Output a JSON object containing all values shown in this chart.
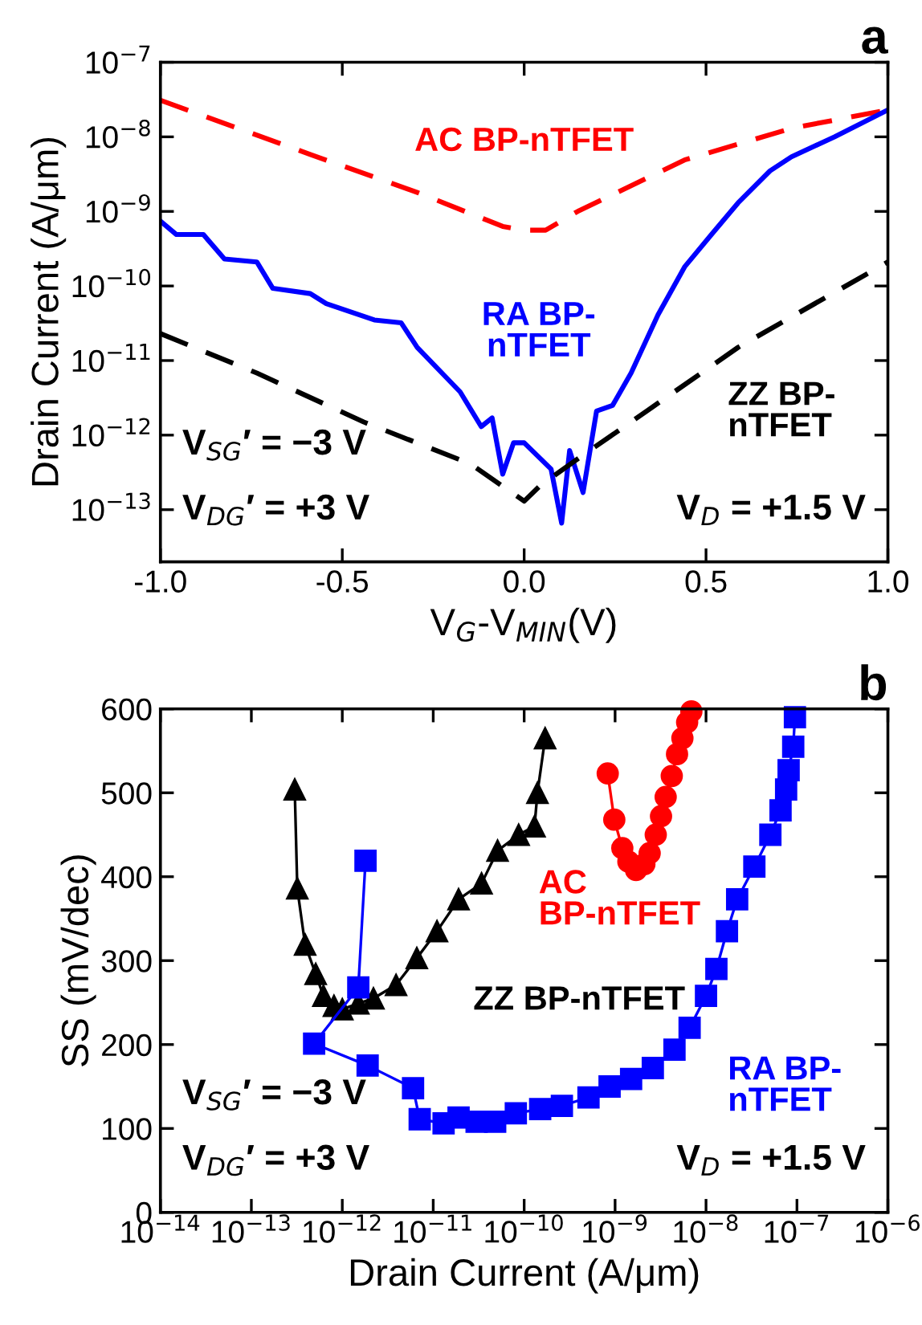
{
  "chart_data": [
    {
      "type": "line",
      "title": "a",
      "xlabel": "V$_{G}$-V$_{MIN}$(V)",
      "ylabel": "Drain Current (A/μm)",
      "log": "y",
      "line_style": "dashed",
      "marker": "none",
      "xlim": [
        -1.0,
        1.0
      ],
      "ylim": [
        2e-14,
        1e-07
      ],
      "xticks": [
        {
          "value": -1.0,
          "label": "-1.0"
        },
        {
          "value": -0.5,
          "label": "-0.5"
        },
        {
          "value": 0.0,
          "label": "0.0"
        },
        {
          "value": 0.5,
          "label": "0.5"
        },
        {
          "value": 1.0,
          "label": "1.0"
        }
      ],
      "yticks": [
        {
          "value": 1e-13,
          "label": "10$^{−13}$"
        },
        {
          "value": 1e-12,
          "label": "10$^{−12}$"
        },
        {
          "value": 1e-11,
          "label": "10$^{−11}$"
        },
        {
          "value": 1e-10,
          "label": "10$^{−10}$"
        },
        {
          "value": 1e-09,
          "label": "10$^{−9}$"
        },
        {
          "value": 1e-08,
          "label": "10$^{−8}$"
        },
        {
          "value": 1e-07,
          "label": "10$^{−7}$"
        }
      ],
      "series": [
        {
          "name": "AC BP-nTFET",
          "color": "#ff0000",
          "x": [
            -1,
            -0.588,
            -0.294,
            -0.059,
            0,
            0.059,
            0.147,
            0.441,
            0.735,
            1
          ],
          "values": [
            3.1e-08,
            5.8e-09,
            1.8e-09,
            6.3e-10,
            5.6e-10,
            5.6e-10,
            1e-09,
            4.9e-09,
            1.3e-08,
            2.3e-08
          ]
        },
        {
          "name": "RA BP-\nnTFET",
          "color": "#0000ff",
          "line_style": "solid",
          "x": [
            -1,
            -0.956,
            -0.882,
            -0.824,
            -0.735,
            -0.691,
            -0.588,
            -0.544,
            -0.412,
            -0.338,
            -0.294,
            -0.176,
            -0.118,
            -0.088,
            -0.059,
            -0.029,
            0,
            0.074,
            0.103,
            0.125,
            0.162,
            0.199,
            0.243,
            0.294,
            0.368,
            0.441,
            0.515,
            0.588,
            0.676,
            0.735,
            0.853,
            1
          ],
          "values": [
            7.4e-10,
            4.9e-10,
            4.9e-10,
            2.3e-10,
            2.1e-10,
            9.3e-11,
            7.9e-11,
            5.8e-11,
            3.5e-11,
            3.2e-11,
            1.5e-11,
            3.8e-12,
            1.3e-12,
            1.7e-12,
            3e-13,
            7.9e-13,
            7.9e-13,
            3.5e-13,
            6.6e-14,
            6.2e-13,
            1.7e-13,
            2.1e-12,
            2.5e-12,
            6.8e-12,
            4.1e-11,
            1.8e-10,
            4.9e-10,
            1.3e-09,
            3.5e-09,
            5.4e-09,
            1e-08,
            2.3e-08
          ]
        },
        {
          "name": "ZZ BP-\nnTFET",
          "color": "#000000",
          "x": [
            -1,
            -0.735,
            -0.441,
            -0.147,
            0,
            0.044,
            0.147,
            0.294,
            0.588,
            1
          ],
          "values": [
            2.3e-11,
            6.8e-12,
            1.5e-12,
            4.1e-13,
            1.3e-13,
            2.1e-13,
            4.8e-13,
            1.5e-12,
            1.5e-11,
            2.1e-10
          ]
        }
      ],
      "annotations": [
        "V$_{SG}$′ = −3 V",
        "V$_{DG}$′ = +3 V",
        "V$_{D}$ = +1.5 V"
      ]
    },
    {
      "type": "line",
      "title": "b",
      "xlabel": "Drain Current (A/μm)",
      "ylabel": "SS (mV/dec)",
      "log": "x",
      "marker": "circle",
      "line_style": "solid",
      "xlim": [
        1e-14,
        1e-06
      ],
      "ylim": [
        0,
        600
      ],
      "xticks": [
        {
          "value": 1e-14,
          "label": "10$^{−14}$"
        },
        {
          "value": 1e-13,
          "label": "10$^{−13}$"
        },
        {
          "value": 1e-12,
          "label": "10$^{−12}$"
        },
        {
          "value": 1e-11,
          "label": "10$^{−11}$"
        },
        {
          "value": 1e-10,
          "label": "10$^{−10}$"
        },
        {
          "value": 1e-09,
          "label": "10$^{−9}$"
        },
        {
          "value": 1e-08,
          "label": "10$^{−8}$"
        },
        {
          "value": 1e-07,
          "label": "10$^{−7}$"
        },
        {
          "value": 1e-06,
          "label": "10$^{−6}$"
        }
      ],
      "yticks": [
        0,
        100,
        200,
        300,
        400,
        500,
        600
      ],
      "series": [
        {
          "name": "ZZ BP-nTFET",
          "color": "#000000",
          "marker": "triangle",
          "x": [
            3e-13,
            3.2e-13,
            3.9e-13,
            5.1e-13,
            6.2e-13,
            8.1e-13,
            1e-12,
            1.5e-12,
            2.2e-12,
            3.9e-12,
            6.6e-12,
            1.1e-11,
            1.9e-11,
            3.4e-11,
            5.1e-11,
            8.7e-11,
            1.3e-10,
            1.4e-10,
            1.7e-10
          ],
          "values": [
            504,
            386,
            319,
            284,
            258,
            246,
            242,
            249,
            255,
            271,
            303,
            335,
            373,
            392,
            431,
            450,
            460,
            500,
            565
          ]
        },
        {
          "name": "AC\nBP-nTFET",
          "color": "#ff0000",
          "x": [
            8.3e-10,
            9.8e-10,
            1.2e-09,
            1.4e-09,
            1.7e-09,
            2.1e-09,
            2.4e-09,
            2.8e-09,
            3.2e-09,
            3.6e-09,
            4.2e-09,
            4.8e-09,
            5.5e-09,
            6.2e-09,
            6.9e-09
          ],
          "values": [
            523,
            468,
            434,
            418,
            408,
            415,
            428,
            450,
            472,
            495,
            520,
            546,
            565,
            584,
            597
          ]
        },
        {
          "name": "RA BP-\nnTFET",
          "color": "#0000ff",
          "marker": "square",
          "x": [
            1.8e-12,
            1.5e-12,
            4.9e-13,
            1.9e-12,
            6e-12,
            7.1e-12,
            1.3e-11,
            1.9e-11,
            3e-11,
            4.8e-11,
            8.1e-11,
            1.5e-10,
            2.6e-10,
            5.1e-10,
            8.7e-10,
            1.5e-09,
            2.6e-09,
            4.5e-09,
            6.6e-09,
            1e-08,
            1.3e-08,
            1.7e-08,
            2.2e-08,
            3.4e-08,
            5.1e-08,
            6.6e-08,
            7.6e-08,
            8.1e-08,
            9.1e-08,
            9.5e-08
          ],
          "values": [
            419,
            268,
            201,
            175,
            148,
            111,
            106,
            113,
            108,
            108,
            118,
            123,
            127,
            137,
            150,
            159,
            172,
            194,
            220,
            258,
            290,
            335,
            373,
            412,
            450,
            479,
            504,
            527,
            555,
            590
          ]
        }
      ],
      "annotations": [
        "V$_{SG}$′ = −3 V",
        "V$_{DG}$′ = +3 V",
        "V$_{D}$ = +1.5 V"
      ]
    }
  ]
}
